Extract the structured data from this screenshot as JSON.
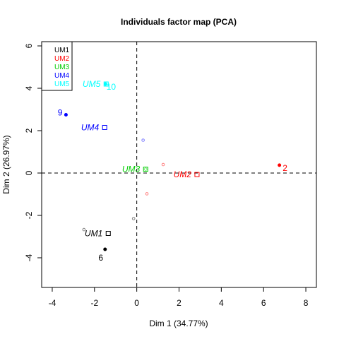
{
  "chart_data": {
    "type": "scatter",
    "title": "Individuals factor map (PCA)",
    "xlabel": "Dim 1 (34.77%)",
    "ylabel": "Dim 2 (26.97%)",
    "xlim": [
      -4.5,
      8.5
    ],
    "ylim": [
      -5.4,
      6.2
    ],
    "xticks": [
      -4,
      -2,
      0,
      2,
      4,
      6,
      8
    ],
    "yticks": [
      -4,
      -2,
      0,
      2,
      4,
      6
    ],
    "xtick_labels": [
      "-4",
      "-2",
      "0",
      "2",
      "4",
      "6",
      "8"
    ],
    "ytick_labels": [
      "-4",
      "-2",
      "0",
      "2",
      "4",
      "6"
    ],
    "grid": false,
    "reference_lines": {
      "x": 0,
      "y": 0,
      "style": "dashed"
    },
    "legend": {
      "position": "top-left",
      "entries": [
        {
          "label": "UM1",
          "color": "#000000"
        },
        {
          "label": "UM2",
          "color": "#ff0000"
        },
        {
          "label": "UM3",
          "color": "#00cd00"
        },
        {
          "label": "UM4",
          "color": "#0000ff"
        },
        {
          "label": "UM5",
          "color": "#00ffff"
        }
      ]
    },
    "individuals": [
      {
        "x": -2.5,
        "y": -2.67,
        "color": "#000000",
        "label": ""
      },
      {
        "x": -1.5,
        "y": -3.6,
        "color": "#000000",
        "label": "6"
      },
      {
        "x": -0.15,
        "y": -2.15,
        "color": "#000000",
        "label": ""
      },
      {
        "x": 0.48,
        "y": -0.98,
        "color": "#ff0000",
        "label": ""
      },
      {
        "x": 1.25,
        "y": 0.4,
        "color": "#ff0000",
        "label": ""
      },
      {
        "x": 6.75,
        "y": 0.37,
        "color": "#ff0000",
        "label": "2"
      },
      {
        "x": 0.42,
        "y": 0.18,
        "color": "#00cd00",
        "label": ""
      },
      {
        "x": 0.3,
        "y": 1.55,
        "color": "#0000ff",
        "label": ""
      },
      {
        "x": -3.35,
        "y": 2.75,
        "color": "#0000ff",
        "label": "9"
      },
      {
        "x": -1.48,
        "y": 4.2,
        "color": "#00ffff",
        "label": "10"
      }
    ],
    "categories": [
      {
        "label": "UM1",
        "x": -1.35,
        "y": -2.85,
        "color": "#000000"
      },
      {
        "label": "UM2",
        "x": 2.85,
        "y": -0.07,
        "color": "#ff0000"
      },
      {
        "label": "UM3",
        "x": 0.42,
        "y": 0.18,
        "color": "#00cd00"
      },
      {
        "label": "UM4",
        "x": -1.52,
        "y": 2.15,
        "color": "#0000ff"
      },
      {
        "label": "UM5",
        "x": -1.45,
        "y": 4.2,
        "color": "#00ffff"
      }
    ]
  }
}
